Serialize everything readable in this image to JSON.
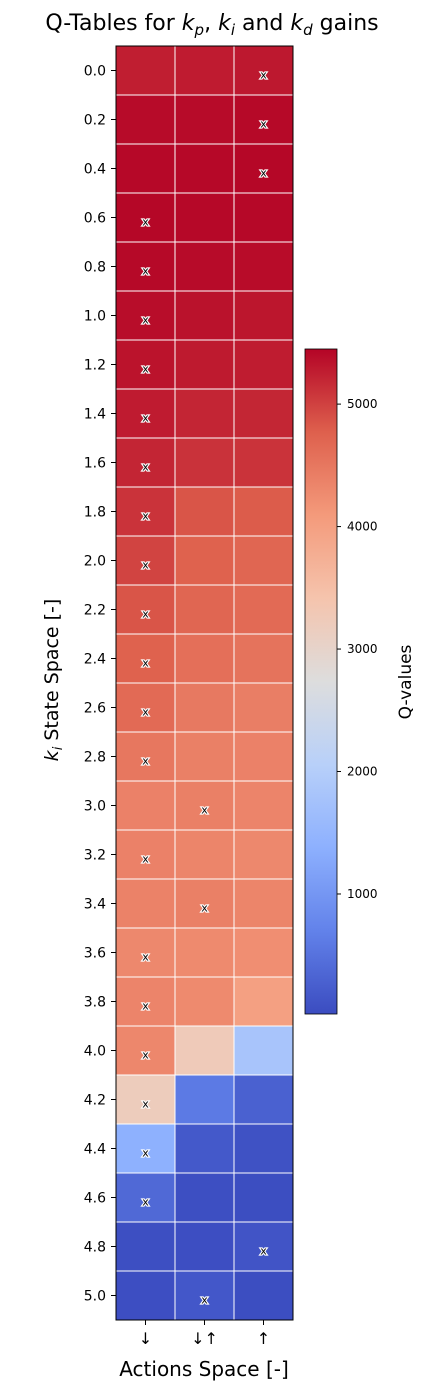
{
  "chart_data": {
    "type": "heatmap",
    "title_parts": [
      "Q-Tables for ",
      "k",
      "p",
      ", ",
      "k",
      "i",
      " and ",
      "k",
      "d",
      " gains"
    ],
    "ylabel_parts": [
      "k",
      "i",
      " State Space [-]"
    ],
    "xlabel": "Actions Space [-]",
    "colorbar_label": "Q-values",
    "colorbar_ticks": [
      1000,
      2000,
      3000,
      4000,
      5000
    ],
    "colorbar_tick_labels": [
      "1000",
      "2000",
      "3000",
      "4000",
      "5000"
    ],
    "value_range": [
      20,
      5450
    ],
    "colormap": "coolwarm",
    "x_categories": [
      "↓",
      "↓↑",
      "↑"
    ],
    "y_categories": [
      "0.0",
      "0.2",
      "0.4",
      "0.6",
      "0.8",
      "1.0",
      "1.2",
      "1.4",
      "1.6",
      "1.8",
      "2.0",
      "2.2",
      "2.4",
      "2.6",
      "2.8",
      "3.0",
      "3.2",
      "3.4",
      "3.6",
      "3.8",
      "4.0",
      "4.2",
      "4.4",
      "4.6",
      "4.8",
      "5.0"
    ],
    "values": [
      [
        5260,
        5280,
        5300
      ],
      [
        5400,
        5400,
        5410
      ],
      [
        5420,
        5420,
        5430
      ],
      [
        5430,
        5420,
        5420
      ],
      [
        5410,
        5400,
        5390
      ],
      [
        5380,
        5350,
        5320
      ],
      [
        5340,
        5290,
        5270
      ],
      [
        5280,
        5210,
        5200
      ],
      [
        5210,
        5110,
        5100
      ],
      [
        5100,
        4850,
        4800
      ],
      [
        4980,
        4750,
        4700
      ],
      [
        4850,
        4700,
        4650
      ],
      [
        4750,
        4600,
        4550
      ],
      [
        4650,
        4480,
        4420
      ],
      [
        4500,
        4400,
        4380
      ],
      [
        4380,
        4400,
        4350
      ],
      [
        4380,
        4340,
        4300
      ],
      [
        4370,
        4400,
        4340
      ],
      [
        4300,
        4280,
        4230
      ],
      [
        4350,
        4280,
        4000
      ],
      [
        4320,
        3250,
        1800
      ],
      [
        3200,
        600,
        280
      ],
      [
        1400,
        180,
        90
      ],
      [
        380,
        60,
        40
      ],
      [
        60,
        50,
        120
      ],
      [
        50,
        160,
        40
      ]
    ],
    "best_action_marker": "x",
    "best_action_index": [
      2,
      2,
      2,
      0,
      0,
      0,
      0,
      0,
      0,
      0,
      0,
      0,
      0,
      0,
      0,
      1,
      0,
      1,
      0,
      0,
      0,
      0,
      0,
      0,
      2,
      1
    ]
  }
}
